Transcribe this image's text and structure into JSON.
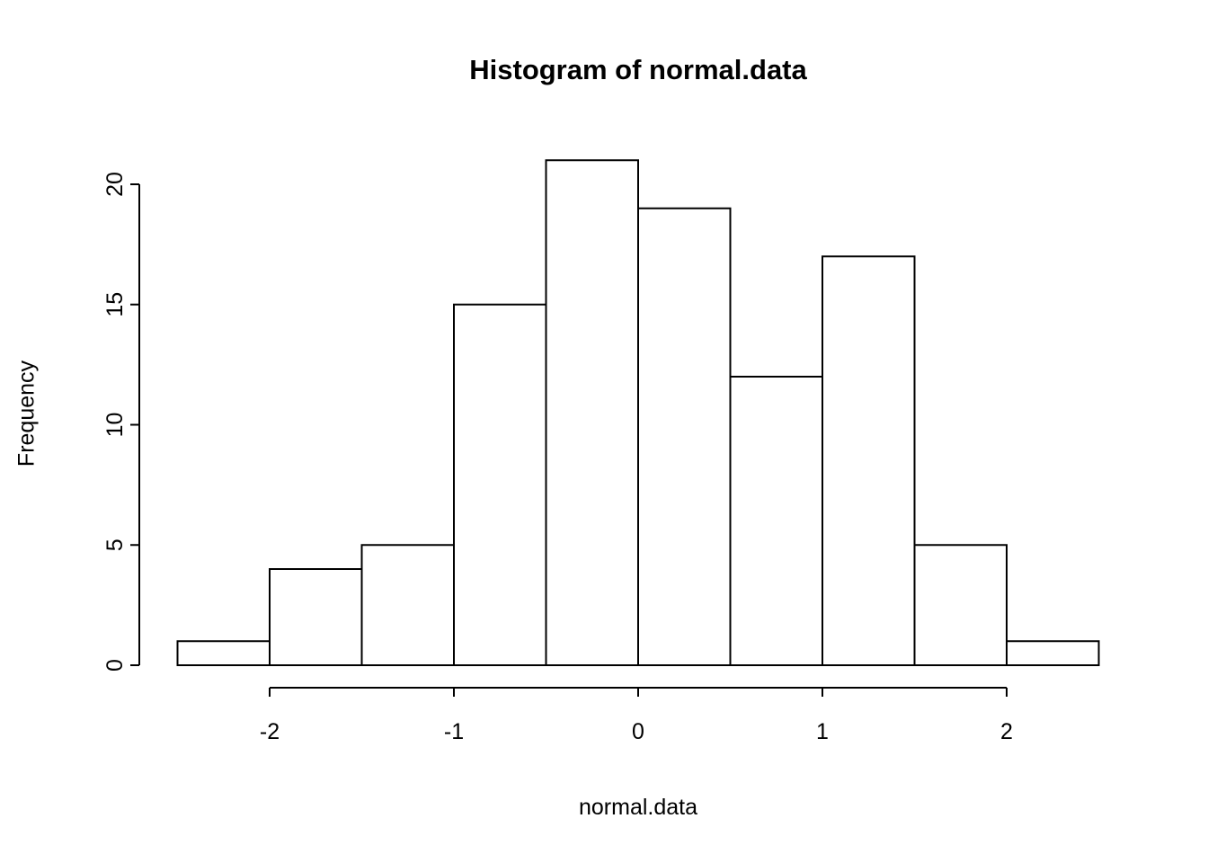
{
  "chart_data": {
    "type": "bar",
    "subtype": "histogram",
    "title": "Histogram of normal.data",
    "xlabel": "normal.data",
    "ylabel": "Frequency",
    "bin_start": -2.5,
    "bin_width": 0.5,
    "bin_edges": [
      -2.5,
      -2.0,
      -1.5,
      -1.0,
      -0.5,
      0.0,
      0.5,
      1.0,
      1.5,
      2.0,
      2.5
    ],
    "values": [
      1,
      4,
      5,
      15,
      21,
      19,
      12,
      17,
      5,
      1
    ],
    "x_ticks": [
      -2,
      -1,
      0,
      1,
      2
    ],
    "y_ticks": [
      0,
      5,
      10,
      15,
      20
    ],
    "xlim": [
      -2.5,
      2.5
    ],
    "ylim": [
      0,
      21
    ],
    "grid": false,
    "legend": "none",
    "bar_fill": "#ffffff",
    "stroke": "#000000",
    "background": "#ffffff"
  }
}
